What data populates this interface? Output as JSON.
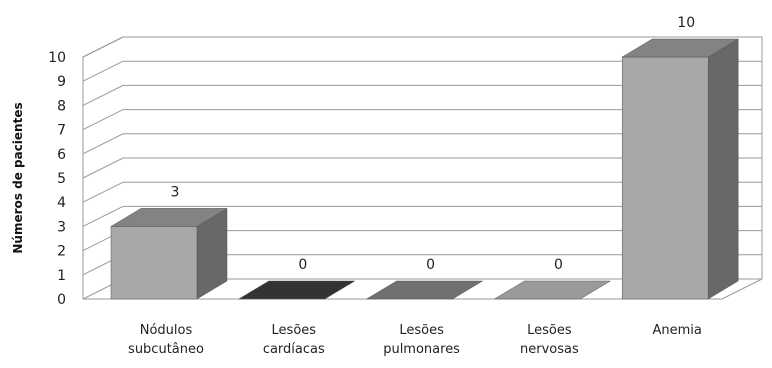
{
  "chart_data": {
    "type": "bar",
    "categories": [
      [
        "Nódulos",
        "subcutâneo"
      ],
      [
        "Lesões",
        "cardíacas"
      ],
      [
        "Lesões",
        "pulmonares"
      ],
      [
        "Lesões",
        "nervosas"
      ],
      [
        "Anemia"
      ]
    ],
    "values": [
      3,
      0,
      0,
      0,
      10
    ],
    "data_labels": [
      "3",
      "0",
      "0",
      "0",
      "10"
    ],
    "bar_colors": [
      "#a8a8a8",
      "#333333",
      "#707070",
      "#9a9a9a",
      "#a8a8a8"
    ],
    "ylabel": "Números de pacientes",
    "ylim": [
      0,
      10
    ],
    "yticks": [
      "0",
      "1",
      "2",
      "3",
      "4",
      "5",
      "6",
      "7",
      "8",
      "9",
      "10"
    ],
    "grid": true,
    "style": "3d-column"
  }
}
